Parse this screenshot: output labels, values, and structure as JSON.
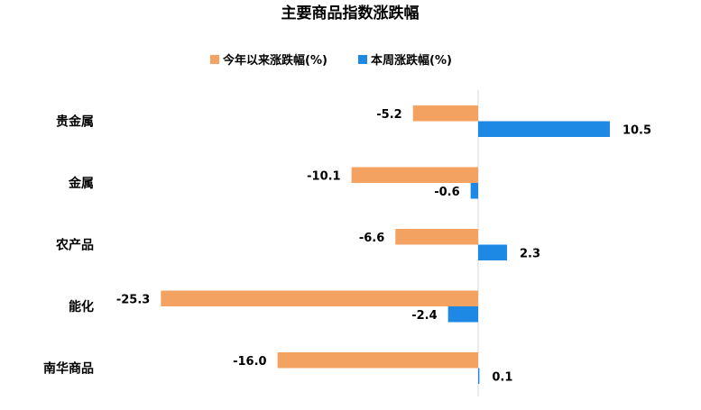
{
  "chart_data": {
    "type": "bar",
    "orientation": "horizontal",
    "title": "主要商品指数涨跌幅",
    "categories": [
      "贵金属",
      "金属",
      "农产品",
      "能化",
      "南华商品"
    ],
    "series": [
      {
        "name": "今年以来涨跌幅(%)",
        "color": "#F4A261",
        "values": [
          -5.2,
          -10.1,
          -6.6,
          -25.3,
          -16.0
        ]
      },
      {
        "name": "本周涨跌幅(%)",
        "color": "#1E88E5",
        "values": [
          10.5,
          -0.6,
          2.3,
          -2.4,
          0.1
        ]
      }
    ],
    "value_labels": [
      [
        "-5.2",
        "-10.1",
        "-6.6",
        "-25.3",
        "-16.0"
      ],
      [
        "10.5",
        "-0.6",
        "2.3",
        "-2.4",
        "0.1"
      ]
    ],
    "xlim": [
      -25.3,
      10.5
    ],
    "grid": false,
    "legend_position": "top-center"
  }
}
